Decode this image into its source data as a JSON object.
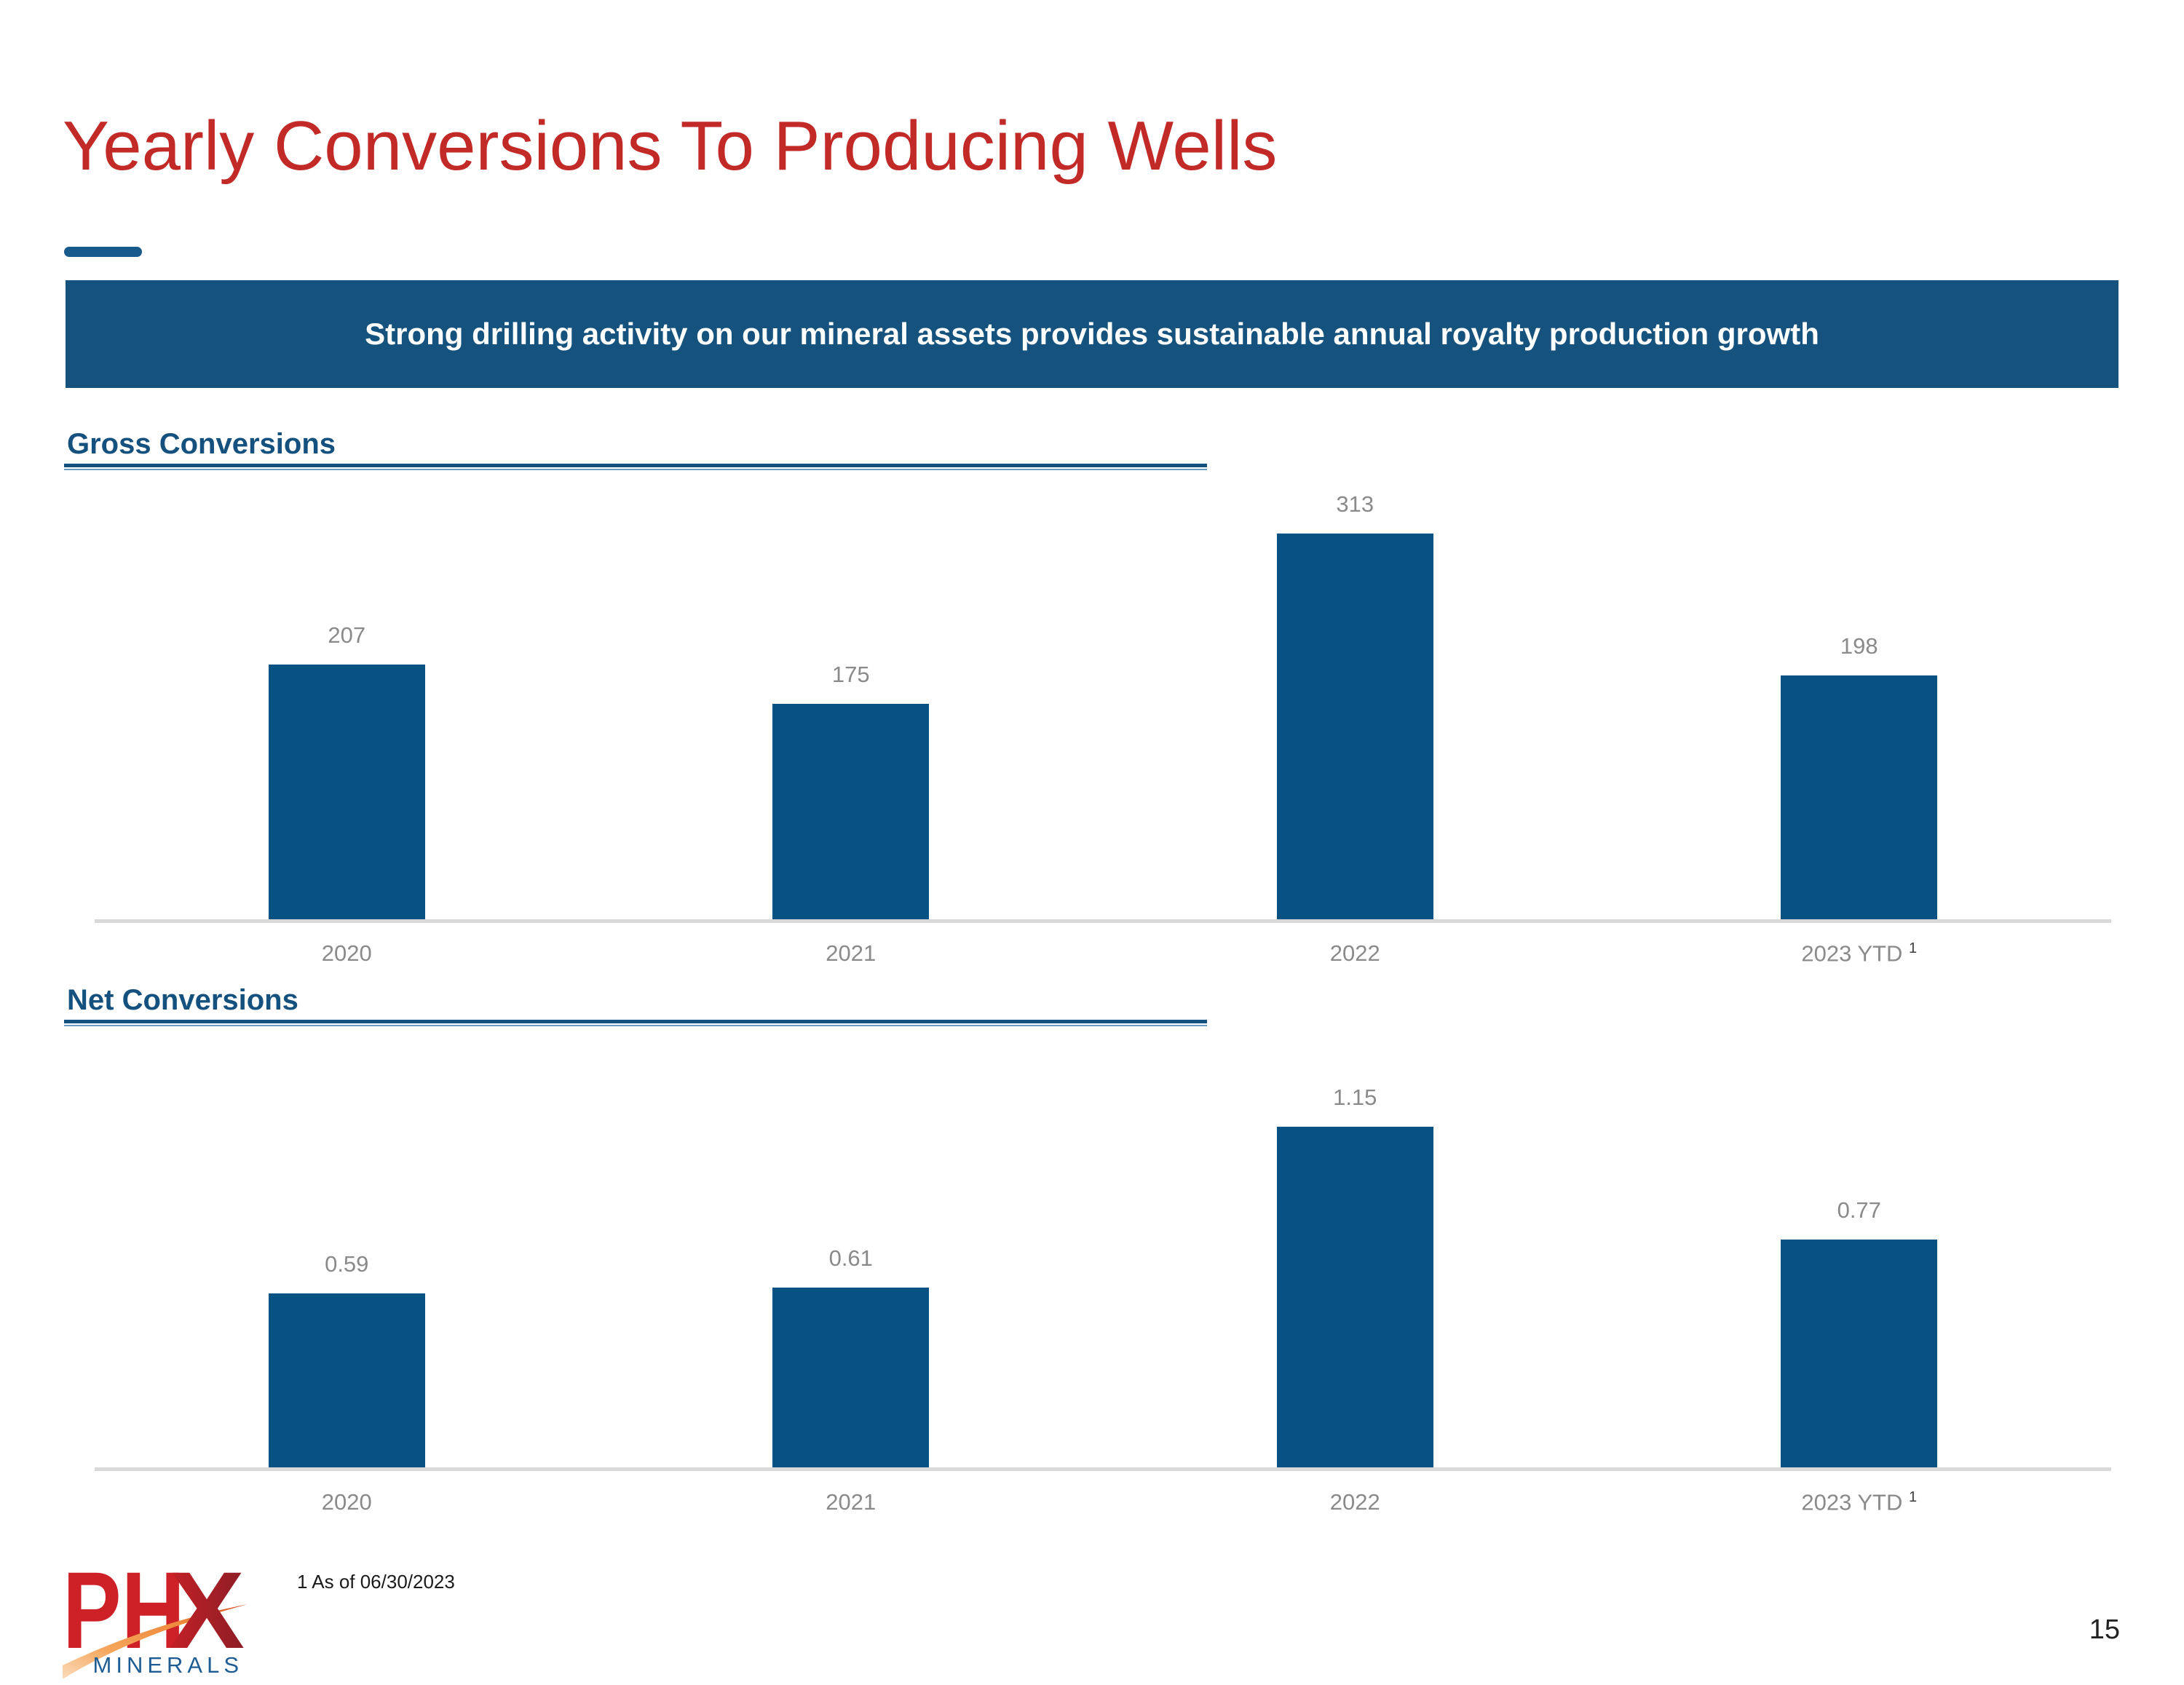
{
  "slide": {
    "title": "Yearly Conversions To Producing Wells",
    "banner": "Strong drilling activity on our mineral assets provides sustainable annual royalty production growth",
    "footnote": "1 As of 06/30/2023",
    "page_number": "15"
  },
  "colors": {
    "title_red": "#c22a28",
    "banner_blue": "#15527e",
    "bar_blue": "#075183",
    "heading_blue": "#15517e",
    "label_gray": "#8a8a8a",
    "axis_gray": "#d9d9d9",
    "logo_red": "#ce2027",
    "logo_maroon": "#8e1e26",
    "logo_orange": "#f0913e",
    "logo_minerals_blue": "#1e5c94"
  },
  "chart_data": [
    {
      "type": "bar",
      "title": "Gross Conversions",
      "categories": [
        "2020",
        "2021",
        "2022",
        "2023 YTD"
      ],
      "category_superscripts": [
        "",
        "",
        "",
        "1"
      ],
      "values": [
        207,
        175,
        313,
        198
      ],
      "value_labels": [
        "207",
        "175",
        "313",
        "198"
      ],
      "xlabel": "",
      "ylabel": "",
      "ylim": [
        0,
        350
      ],
      "grid": false,
      "legend": "none",
      "bar_color": "#075183",
      "value_label_color": "#8a8a8a"
    },
    {
      "type": "bar",
      "title": "Net Conversions",
      "categories": [
        "2020",
        "2021",
        "2022",
        "2023 YTD"
      ],
      "category_superscripts": [
        "",
        "",
        "",
        "1"
      ],
      "values": [
        0.59,
        0.61,
        1.15,
        0.77
      ],
      "value_labels": [
        "0.59",
        "0.61",
        "1.15",
        "0.77"
      ],
      "xlabel": "",
      "ylabel": "",
      "ylim": [
        0,
        1.3
      ],
      "grid": false,
      "legend": "none",
      "bar_color": "#075183",
      "value_label_color": "#8a8a8a"
    }
  ],
  "logo": {
    "brand_ph": "PH",
    "brand_x": "X",
    "sub": "MINERALS"
  }
}
